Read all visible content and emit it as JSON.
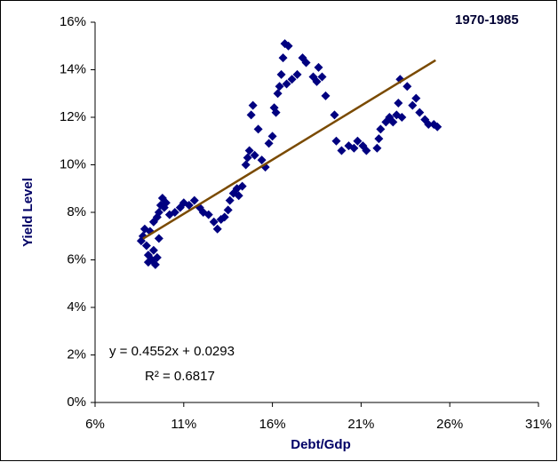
{
  "chart_data": {
    "type": "scatter",
    "title": "1970-1985",
    "x_label": "Debt/Gdp",
    "y_label": "Yield Level",
    "equation": "y = 0.4552x + 0.0293",
    "r_squared": "R² = 0.6817",
    "xlim": [
      6,
      31
    ],
    "xticks": [
      {
        "value": 6,
        "label": "6%"
      },
      {
        "value": 11,
        "label": "11%"
      },
      {
        "value": 16,
        "label": "16%"
      },
      {
        "value": 21,
        "label": "21%"
      },
      {
        "value": 26,
        "label": "26%"
      },
      {
        "value": 31,
        "label": "31%"
      }
    ],
    "ylim": [
      0,
      16
    ],
    "yticks": [
      {
        "value": 0,
        "label": "0%"
      },
      {
        "value": 2,
        "label": "2%"
      },
      {
        "value": 4,
        "label": "4%"
      },
      {
        "value": 6,
        "label": "6%"
      },
      {
        "value": 8,
        "label": "8%"
      },
      {
        "value": 10,
        "label": "10%"
      },
      {
        "value": 12,
        "label": "12%"
      },
      {
        "value": 14,
        "label": "14%"
      },
      {
        "value": 16,
        "label": "16%"
      }
    ],
    "color": "#000080",
    "trendline": {
      "color": "#7a4a00",
      "x": [
        8.7,
        25.2
      ],
      "y": [
        6.89,
        14.4
      ]
    },
    "x": [
      8.6,
      8.7,
      8.8,
      8.9,
      9.0,
      9.0,
      9.1,
      9.2,
      9.3,
      9.3,
      9.4,
      9.5,
      9.5,
      9.6,
      9.6,
      9.7,
      9.8,
      9.9,
      10.0,
      10.2,
      10.5,
      10.8,
      11.0,
      11.3,
      11.6,
      11.9,
      12.1,
      12.4,
      12.7,
      12.9,
      13.1,
      13.3,
      13.5,
      13.6,
      13.8,
      14.0,
      14.1,
      14.3,
      14.5,
      14.6,
      14.7,
      14.8,
      14.9,
      15.0,
      15.2,
      15.4,
      15.6,
      15.8,
      16.0,
      16.1,
      16.2,
      16.3,
      16.4,
      16.5,
      16.6,
      16.7,
      16.8,
      16.9,
      17.1,
      17.4,
      17.7,
      17.9,
      18.3,
      18.5,
      18.6,
      18.8,
      19.0,
      19.5,
      19.6,
      19.9,
      20.3,
      20.6,
      20.8,
      21.1,
      21.3,
      21.9,
      22.0,
      22.1,
      22.4,
      22.6,
      22.8,
      23.0,
      23.1,
      23.2,
      23.3,
      23.6,
      23.9,
      24.1,
      24.3,
      24.6,
      24.8,
      25.1,
      25.3
    ],
    "values": [
      6.8,
      7.0,
      7.3,
      6.6,
      6.2,
      5.9,
      7.2,
      6.0,
      6.4,
      7.6,
      5.8,
      6.1,
      7.8,
      6.9,
      8.0,
      8.3,
      8.6,
      8.2,
      8.4,
      7.9,
      8.0,
      8.2,
      8.4,
      8.3,
      8.5,
      8.2,
      8.0,
      7.9,
      7.6,
      7.3,
      7.7,
      7.8,
      8.1,
      8.5,
      8.8,
      9.0,
      8.7,
      9.1,
      10.0,
      10.3,
      10.6,
      12.1,
      12.5,
      10.4,
      11.5,
      10.2,
      9.9,
      10.9,
      11.2,
      12.4,
      12.2,
      13.0,
      13.3,
      13.8,
      14.5,
      15.1,
      13.4,
      15.0,
      13.6,
      13.8,
      14.5,
      14.3,
      13.7,
      13.5,
      14.1,
      13.7,
      12.9,
      12.1,
      11.0,
      10.6,
      10.8,
      10.7,
      11.0,
      10.8,
      10.6,
      10.7,
      11.1,
      11.5,
      11.8,
      12.0,
      11.8,
      12.1,
      12.6,
      13.6,
      12.0,
      13.3,
      12.5,
      12.8,
      12.2,
      11.9,
      11.7,
      11.7,
      11.6
    ]
  }
}
